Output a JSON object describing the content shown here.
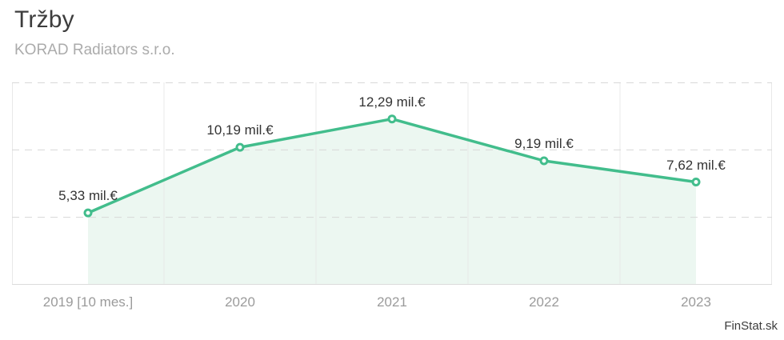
{
  "header": {
    "title": "Tržby",
    "subtitle": "KORAD Radiators s.r.o."
  },
  "attribution": "FinStat.sk",
  "colors": {
    "line": "#42bd8c",
    "marker_fill": "#ffffff",
    "area_fill": "#ecf7f1",
    "grid_vertical": "#e8e8e8",
    "grid_dashed": "#d8d8d8",
    "axis_bottom": "#dcdcdc",
    "point_label_text": "#333333",
    "axis_label_text": "#9b9b9b",
    "title_text": "#3d3d3d",
    "subtitle_text": "#ababab"
  },
  "chart_data": {
    "type": "line",
    "title": "Tržby",
    "subtitle": "KORAD Radiators s.r.o.",
    "categories": [
      "2019 [10 mes.]",
      "2020",
      "2021",
      "2022",
      "2023"
    ],
    "values": [
      5.33,
      10.19,
      12.29,
      9.19,
      7.62
    ],
    "point_labels": [
      "5,33 mil.€",
      "10,19 mil.€",
      "12,29 mil.€",
      "9,19 mil.€",
      "7,62 mil.€"
    ],
    "unit": "mil.€",
    "xlabel": "",
    "ylabel": "",
    "ylim": [
      0,
      15
    ],
    "grid_values": [
      5,
      10,
      15
    ],
    "grid": "horizontal-dashed-and-vertical-solid",
    "area_fill": true,
    "markers": "open-circle",
    "legend": "none",
    "y_axis_labels_visible": false
  }
}
